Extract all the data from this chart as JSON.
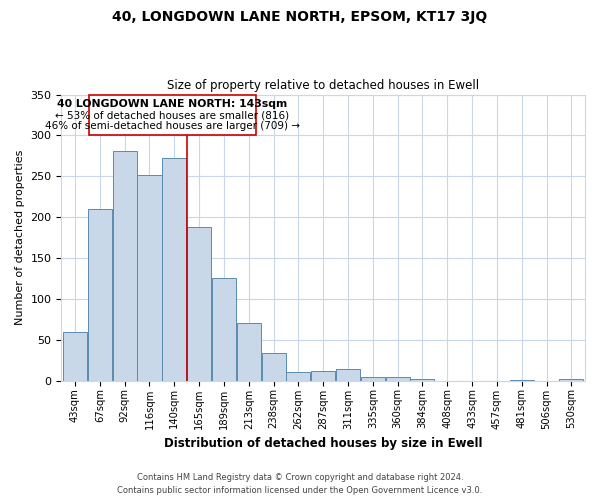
{
  "title": "40, LONGDOWN LANE NORTH, EPSOM, KT17 3JQ",
  "subtitle": "Size of property relative to detached houses in Ewell",
  "xlabel": "Distribution of detached houses by size in Ewell",
  "ylabel": "Number of detached properties",
  "bar_labels": [
    "43sqm",
    "67sqm",
    "92sqm",
    "116sqm",
    "140sqm",
    "165sqm",
    "189sqm",
    "213sqm",
    "238sqm",
    "262sqm",
    "287sqm",
    "311sqm",
    "335sqm",
    "360sqm",
    "384sqm",
    "408sqm",
    "433sqm",
    "457sqm",
    "481sqm",
    "506sqm",
    "530sqm"
  ],
  "bar_values": [
    60,
    210,
    281,
    252,
    272,
    188,
    126,
    70,
    34,
    10,
    12,
    14,
    4,
    5,
    2,
    0,
    0,
    0,
    1,
    0,
    2
  ],
  "bar_color": "#c8d8e8",
  "bar_edge_color": "#5a8ab0",
  "vline_index": 4.5,
  "vline_label": "40 LONGDOWN LANE NORTH: 143sqm",
  "annot_line1": "← 53% of detached houses are smaller (816)",
  "annot_line2": "46% of semi-detached houses are larger (709) →",
  "vline_color": "#cc0000",
  "box_edge_color": "#cc0000",
  "ylim": [
    0,
    350
  ],
  "yticks": [
    0,
    50,
    100,
    150,
    200,
    250,
    300,
    350
  ],
  "footer_line1": "Contains HM Land Registry data © Crown copyright and database right 2024.",
  "footer_line2": "Contains public sector information licensed under the Open Government Licence v3.0.",
  "bg_color": "#ffffff",
  "grid_color": "#c8d8e8"
}
